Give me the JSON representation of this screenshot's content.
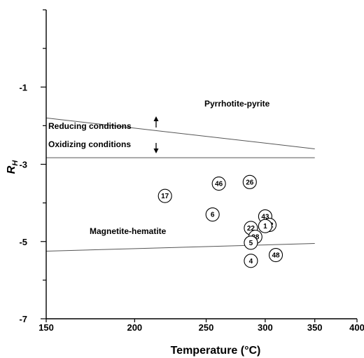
{
  "chart_data": {
    "type": "scatter",
    "xlabel": "Temperature (°C)",
    "ylabel": "R",
    "ylabel_sub": "H",
    "xlim": [
      150,
      400
    ],
    "ylim": [
      -7,
      1
    ],
    "x_scale": "reciprocal-absolute-temperature",
    "x_ticks": [
      150,
      200,
      250,
      300,
      350,
      400
    ],
    "y_ticks": [
      -1,
      -3,
      -5,
      -7
    ],
    "grid": false,
    "lines": [
      {
        "name": "Pyrrhotite-pyrite",
        "x": [
          150,
          350
        ],
        "y": [
          -1.8,
          -2.6
        ]
      },
      {
        "name": "",
        "x": [
          150,
          350
        ],
        "y": [
          -2.83,
          -2.83
        ]
      },
      {
        "name": "Magnetite-hematite",
        "x": [
          150,
          350
        ],
        "y": [
          -5.25,
          -5.05
        ]
      }
    ],
    "regions": [
      {
        "label": "Reducing conditions",
        "arrow": "up"
      },
      {
        "label": "Oxidizing conditions",
        "arrow": "down"
      }
    ],
    "points": [
      {
        "label": "17",
        "x": 220,
        "y": -3.82
      },
      {
        "label": "46",
        "x": 260,
        "y": -3.5
      },
      {
        "label": "26",
        "x": 286,
        "y": -3.46
      },
      {
        "label": "6",
        "x": 255,
        "y": -4.3
      },
      {
        "label": "43",
        "x": 300,
        "y": -4.35
      },
      {
        "label": "52",
        "x": 304,
        "y": -4.57
      },
      {
        "label": "1",
        "x": 300,
        "y": -4.6
      },
      {
        "label": "22",
        "x": 287,
        "y": -4.65
      },
      {
        "label": "28",
        "x": 291,
        "y": -4.88
      },
      {
        "label": "5",
        "x": 287,
        "y": -5.03
      },
      {
        "label": "48",
        "x": 310,
        "y": -5.35
      },
      {
        "label": "4",
        "x": 287,
        "y": -5.5
      }
    ]
  }
}
